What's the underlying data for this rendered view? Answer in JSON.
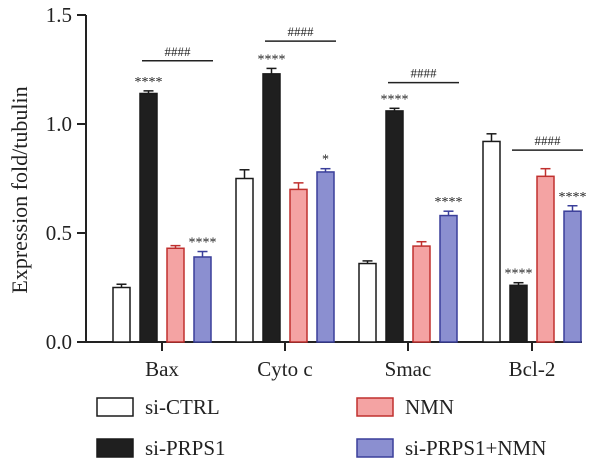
{
  "chart_data": {
    "type": "bar",
    "ylabel": "Expression fold/tubulin",
    "ylim": [
      0,
      1.5
    ],
    "yticks": [
      "0.0",
      "0.5",
      "1.0",
      "1.5"
    ],
    "categories": [
      "Bax",
      "Cyto c",
      "Smac",
      "Bcl-2"
    ],
    "series": [
      {
        "name": "si-CTRL",
        "fill": "#ffffff",
        "stroke": "#1a1a1a",
        "values": [
          0.25,
          0.75,
          0.36,
          0.92
        ],
        "errors": [
          0.015,
          0.04,
          0.012,
          0.035
        ],
        "annotations": [
          "",
          "",
          "",
          ""
        ]
      },
      {
        "name": "si-PRPS1",
        "fill": "#1f1f1f",
        "stroke": "#1a1a1a",
        "values": [
          1.14,
          1.23,
          1.06,
          0.26
        ],
        "errors": [
          0.012,
          0.025,
          0.012,
          0.012
        ],
        "annotations": [
          "****",
          "****",
          "****",
          "****"
        ]
      },
      {
        "name": "NMN",
        "fill": "#f4a3a3",
        "stroke": "#c0302e",
        "values": [
          0.43,
          0.7,
          0.44,
          0.76
        ],
        "errors": [
          0.012,
          0.03,
          0.02,
          0.035
        ],
        "annotations": [
          "",
          "",
          "",
          ""
        ]
      },
      {
        "name": "si-PRPS1+NMN",
        "fill": "#8b8fd0",
        "stroke": "#3a3f9a",
        "values": [
          0.39,
          0.78,
          0.58,
          0.6
        ],
        "errors": [
          0.025,
          0.015,
          0.02,
          0.025
        ],
        "annotations": [
          "****",
          "*",
          "****",
          "****"
        ]
      }
    ],
    "comparisons": [
      {
        "category": "Bax",
        "label": "####",
        "y": 1.29
      },
      {
        "category": "Cyto c",
        "label": "####",
        "y": 1.38
      },
      {
        "category": "Smac",
        "label": "####",
        "y": 1.19
      },
      {
        "category": "Bcl-2",
        "label": "####",
        "y": 0.88
      }
    ],
    "legend_position": "bottom",
    "grid": false
  }
}
